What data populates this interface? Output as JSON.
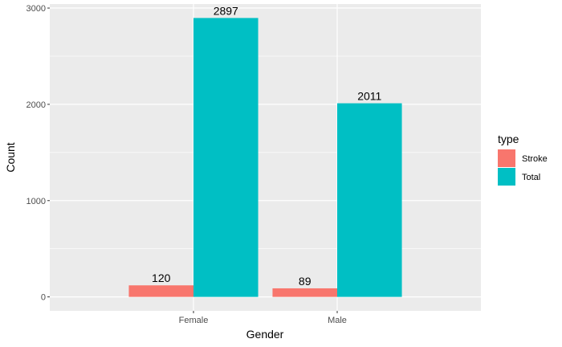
{
  "chart_data": {
    "type": "bar",
    "categories": [
      "Female",
      "Male"
    ],
    "series": [
      {
        "name": "Stroke",
        "values": [
          120,
          89
        ],
        "color": "#F8766D"
      },
      {
        "name": "Total",
        "values": [
          2897,
          2011
        ],
        "color": "#00BFC4"
      }
    ],
    "xlabel": "Gender",
    "ylabel": "Count",
    "ylim": [
      -145,
      3042
    ],
    "yticks": [
      0,
      1000,
      2000,
      3000
    ],
    "grid": true,
    "legend": {
      "title": "type",
      "position": "right"
    },
    "panel_background": "#EBEBEB",
    "grid_color": "#FFFFFF"
  }
}
